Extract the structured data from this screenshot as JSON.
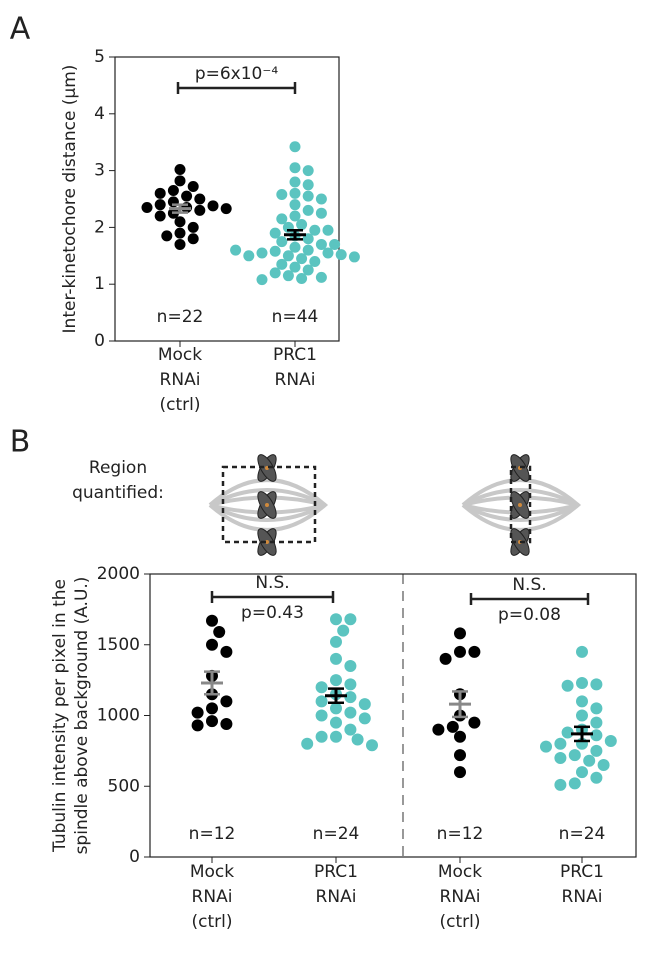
{
  "chart_data": [
    {
      "type": "strip",
      "panel": "A",
      "ylabel": "Inter-kinetochore distance (µm)",
      "categories": [
        [
          "Mock",
          "RNAi",
          "(ctrl)"
        ],
        [
          "PRC1",
          "RNAi"
        ]
      ],
      "series": [
        {
          "color": "#000000",
          "mean_color": "#888888",
          "mean": 2.33,
          "sem": 0.07,
          "n_label": "n=22",
          "values": [
            3.02,
            2.82,
            2.72,
            2.65,
            2.6,
            2.55,
            2.5,
            2.45,
            2.4,
            2.38,
            2.35,
            2.35,
            2.33,
            2.3,
            2.25,
            2.2,
            2.1,
            2.0,
            1.9,
            1.85,
            1.8,
            1.7
          ]
        },
        {
          "color": "#5bc4c0",
          "mean_color": "#000000",
          "mean": 1.87,
          "sem": 0.08,
          "n_label": "n=44",
          "values": [
            3.42,
            3.05,
            3.0,
            2.8,
            2.75,
            2.6,
            2.58,
            2.55,
            2.5,
            2.4,
            2.3,
            2.2,
            2.15,
            2.05,
            2.0,
            1.95,
            1.9,
            1.85,
            1.8,
            1.75,
            1.7,
            1.65,
            1.6,
            1.58,
            1.55,
            1.55,
            1.52,
            1.5,
            1.5,
            1.48,
            1.45,
            1.4,
            1.35,
            1.3,
            1.25,
            1.2,
            1.15,
            1.12,
            1.1,
            1.08,
            1.6,
            1.7,
            1.95,
            2.25
          ]
        }
      ],
      "annotations": [
        {
          "text": [
            "p=6x10⁻⁴"
          ]
        }
      ],
      "ylim": [
        0,
        5
      ],
      "yticks": [
        0,
        1,
        2,
        3,
        4,
        5
      ]
    },
    {
      "type": "strip",
      "panel": "B",
      "ylabel": [
        "Tubulin intensity per pixel in the",
        "spindle above background (A.U.)"
      ],
      "region_label": [
        "Region",
        "quantified:"
      ],
      "categories": [
        [
          "Mock",
          "RNAi",
          "(ctrl)"
        ],
        [
          "PRC1",
          "RNAi"
        ],
        [
          "Mock",
          "RNAi",
          "(ctrl)"
        ],
        [
          "PRC1",
          "RNAi"
        ]
      ],
      "series": [
        {
          "color": "#000000",
          "mean_color": "#888888",
          "mean": 1230,
          "sem": 80,
          "n_label": "n=12",
          "values": [
            1670,
            1590,
            1500,
            1450,
            1280,
            1150,
            1100,
            1050,
            1020,
            960,
            940,
            930
          ]
        },
        {
          "color": "#5bc4c0",
          "mean_color": "#000000",
          "mean": 1140,
          "sem": 50,
          "n_label": "n=24",
          "values": [
            1680,
            1680,
            1600,
            1520,
            1400,
            1350,
            1250,
            1220,
            1200,
            1150,
            1130,
            1100,
            1080,
            1050,
            1020,
            1000,
            980,
            950,
            900,
            850,
            850,
            830,
            800,
            790
          ]
        },
        {
          "color": "#000000",
          "mean_color": "#888888",
          "mean": 1080,
          "sem": 90,
          "n_label": "n=12",
          "values": [
            1580,
            1450,
            1450,
            1400,
            1150,
            1000,
            950,
            920,
            900,
            850,
            720,
            600
          ]
        },
        {
          "color": "#5bc4c0",
          "mean_color": "#000000",
          "mean": 870,
          "sem": 50,
          "n_label": "n=24",
          "values": [
            1450,
            1230,
            1220,
            1210,
            1100,
            1050,
            1000,
            950,
            900,
            880,
            860,
            820,
            800,
            800,
            780,
            750,
            720,
            700,
            680,
            650,
            600,
            560,
            520,
            510
          ]
        }
      ],
      "annotations": [
        {
          "text": [
            "N.S.",
            "p=0.43"
          ]
        },
        {
          "text": [
            "N.S.",
            "p=0.08"
          ]
        }
      ],
      "ylim": [
        0,
        2000
      ],
      "yticks": [
        0,
        500,
        1000,
        1500,
        2000
      ]
    }
  ]
}
